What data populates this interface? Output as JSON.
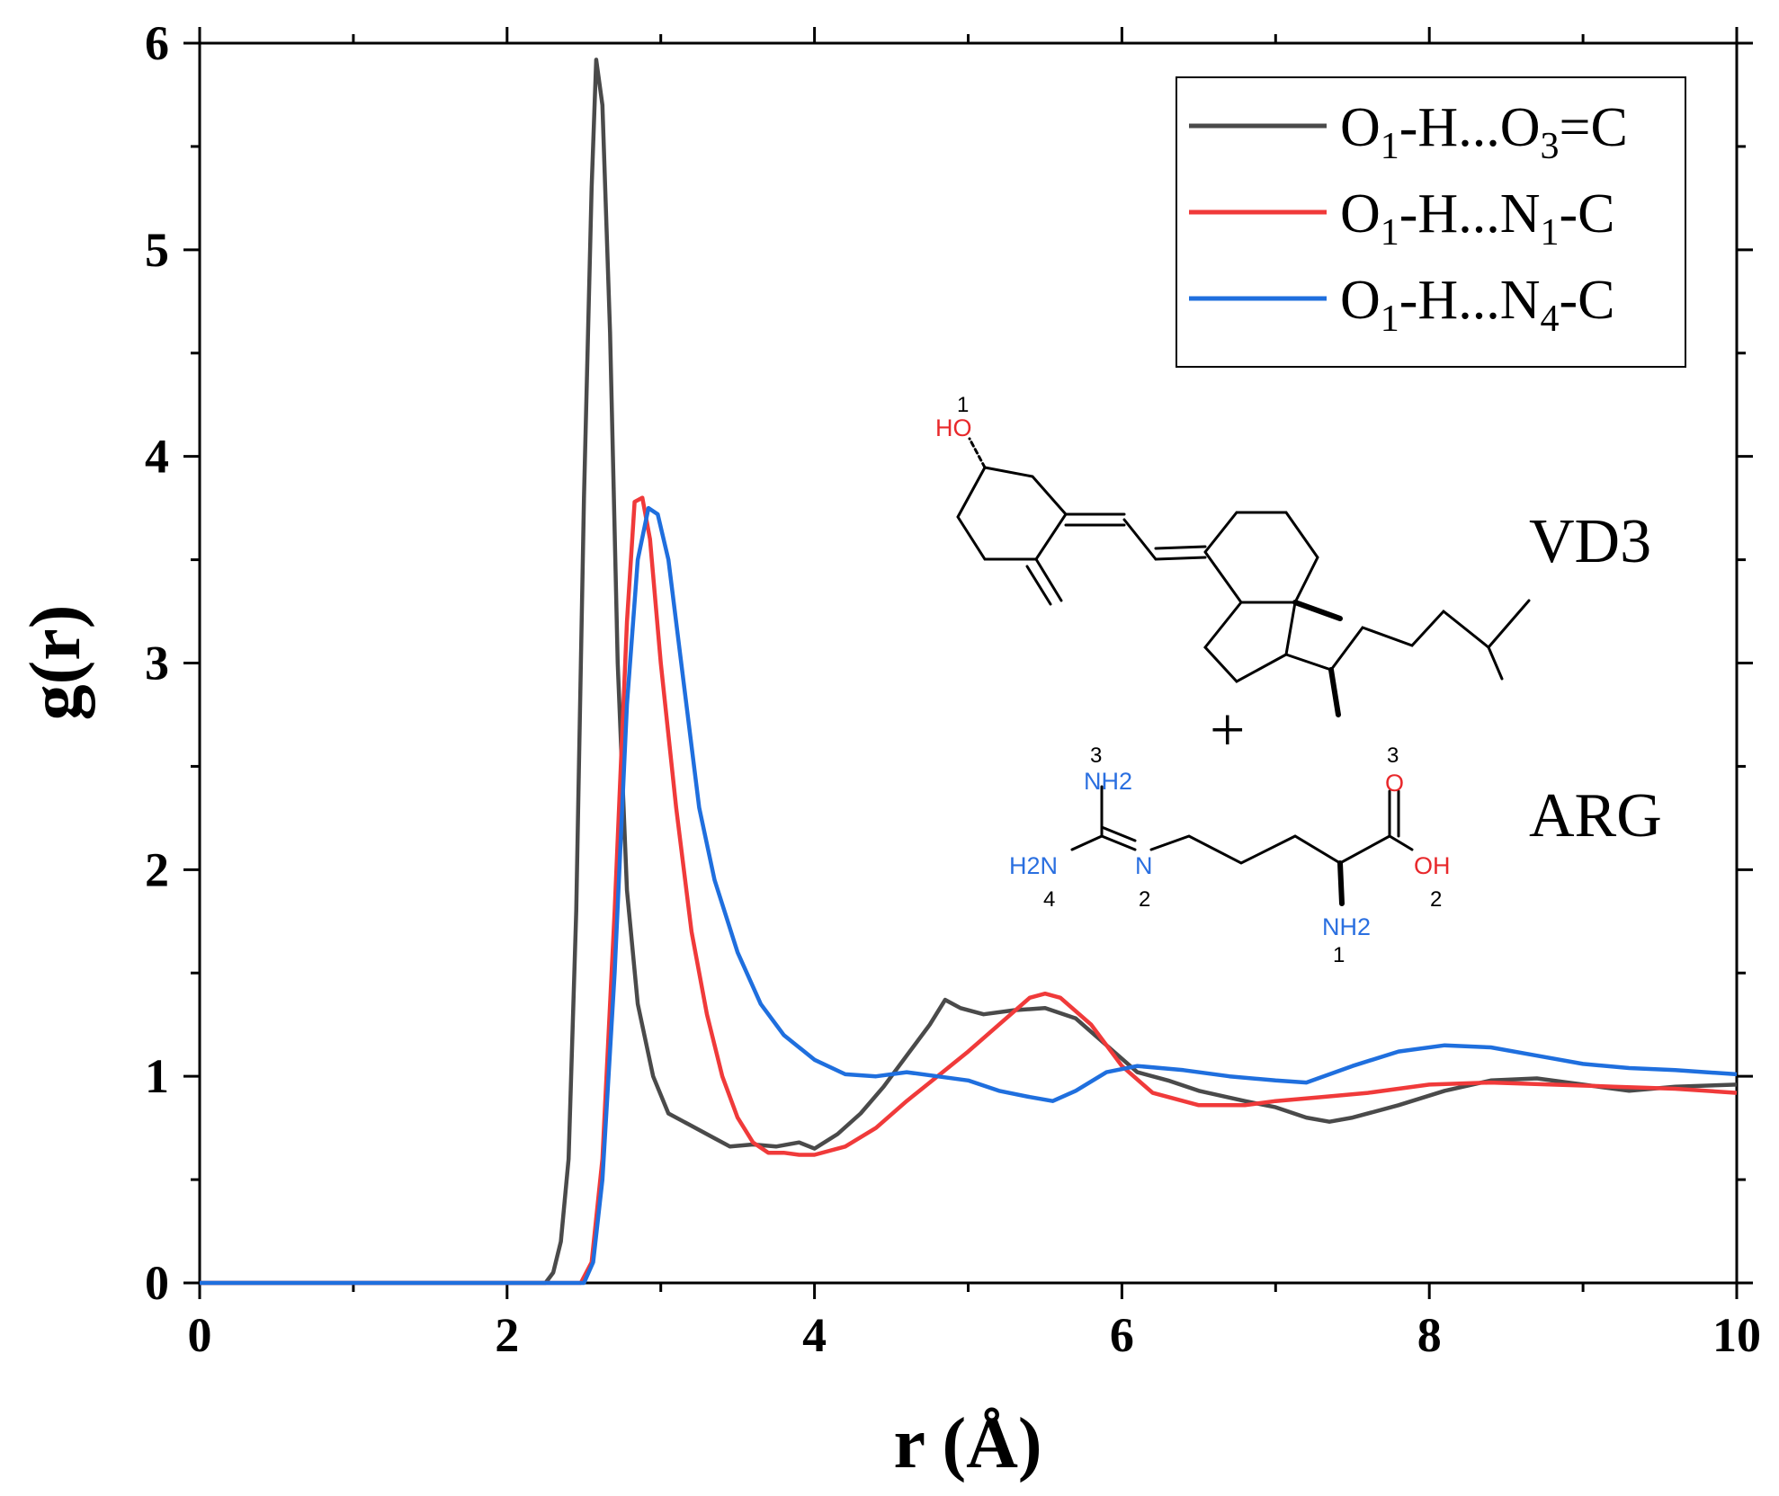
{
  "chart_data": {
    "type": "line",
    "xlabel": "r (Å)",
    "ylabel": "g(r)",
    "xlim": [
      0,
      10
    ],
    "ylim": [
      0,
      6
    ],
    "xticks": [
      "0",
      "2",
      "4",
      "6",
      "8",
      "10"
    ],
    "yticks": [
      "0",
      "1",
      "2",
      "3",
      "4",
      "5",
      "6"
    ],
    "legend_position": "top-right",
    "series": [
      {
        "name": "O1-H...O3=C",
        "label_parts": [
          "O",
          "1",
          "-H...O",
          "3",
          "=C"
        ],
        "color": "#4a4a4a",
        "x": [
          0,
          2.25,
          2.3,
          2.35,
          2.4,
          2.45,
          2.5,
          2.55,
          2.58,
          2.62,
          2.67,
          2.72,
          2.78,
          2.85,
          2.95,
          3.05,
          3.15,
          3.25,
          3.35,
          3.45,
          3.6,
          3.75,
          3.9,
          4.0,
          4.15,
          4.3,
          4.45,
          4.6,
          4.75,
          4.85,
          4.95,
          5.1,
          5.3,
          5.5,
          5.7,
          5.9,
          6.1,
          6.3,
          6.5,
          6.8,
          7.0,
          7.2,
          7.35,
          7.5,
          7.8,
          8.1,
          8.4,
          8.7,
          9.0,
          9.3,
          9.6,
          10.0
        ],
        "y": [
          0,
          0,
          0.05,
          0.2,
          0.6,
          1.8,
          3.8,
          5.3,
          5.92,
          5.7,
          4.6,
          3.0,
          1.9,
          1.35,
          1.0,
          0.82,
          0.78,
          0.74,
          0.7,
          0.66,
          0.67,
          0.66,
          0.68,
          0.65,
          0.72,
          0.82,
          0.95,
          1.1,
          1.25,
          1.37,
          1.33,
          1.3,
          1.32,
          1.33,
          1.28,
          1.15,
          1.02,
          0.98,
          0.93,
          0.88,
          0.85,
          0.8,
          0.78,
          0.8,
          0.86,
          0.93,
          0.98,
          0.99,
          0.96,
          0.93,
          0.95,
          0.96
        ]
      },
      {
        "name": "O1-H...N1-C",
        "label_parts": [
          "O",
          "1",
          "-H...N",
          "1",
          "-C"
        ],
        "color": "#f03a3a",
        "x": [
          0,
          2.48,
          2.55,
          2.62,
          2.7,
          2.78,
          2.83,
          2.88,
          2.93,
          3.0,
          3.1,
          3.2,
          3.3,
          3.4,
          3.5,
          3.6,
          3.7,
          3.8,
          3.9,
          4.0,
          4.2,
          4.4,
          4.6,
          4.8,
          5.0,
          5.2,
          5.4,
          5.5,
          5.6,
          5.8,
          6.0,
          6.2,
          6.5,
          6.8,
          7.0,
          7.3,
          7.6,
          8.0,
          8.4,
          8.8,
          9.2,
          9.6,
          10.0
        ],
        "y": [
          0,
          0,
          0.1,
          0.6,
          1.8,
          3.2,
          3.78,
          3.8,
          3.6,
          3.0,
          2.3,
          1.7,
          1.3,
          1.0,
          0.8,
          0.68,
          0.63,
          0.63,
          0.62,
          0.62,
          0.66,
          0.75,
          0.88,
          1.0,
          1.12,
          1.25,
          1.38,
          1.4,
          1.38,
          1.25,
          1.05,
          0.92,
          0.86,
          0.86,
          0.88,
          0.9,
          0.92,
          0.96,
          0.97,
          0.96,
          0.95,
          0.94,
          0.92
        ]
      },
      {
        "name": "O1-H...N4-C",
        "label_parts": [
          "O",
          "1",
          "-H...N",
          "4",
          "-C"
        ],
        "color": "#1f6fde",
        "x": [
          0,
          2.5,
          2.56,
          2.62,
          2.7,
          2.78,
          2.85,
          2.92,
          2.98,
          3.05,
          3.15,
          3.25,
          3.35,
          3.5,
          3.65,
          3.8,
          4.0,
          4.2,
          4.4,
          4.6,
          4.8,
          5.0,
          5.2,
          5.4,
          5.55,
          5.7,
          5.9,
          6.1,
          6.4,
          6.7,
          7.0,
          7.2,
          7.5,
          7.8,
          8.1,
          8.4,
          8.7,
          9.0,
          9.3,
          9.6,
          10.0
        ],
        "y": [
          0,
          0,
          0.1,
          0.5,
          1.5,
          2.8,
          3.5,
          3.75,
          3.72,
          3.5,
          2.9,
          2.3,
          1.95,
          1.6,
          1.35,
          1.2,
          1.08,
          1.01,
          1.0,
          1.02,
          1.0,
          0.98,
          0.93,
          0.9,
          0.88,
          0.93,
          1.02,
          1.05,
          1.03,
          1.0,
          0.98,
          0.97,
          1.05,
          1.12,
          1.15,
          1.14,
          1.1,
          1.06,
          1.04,
          1.03,
          1.01
        ]
      }
    ],
    "annotations": {
      "vd3": {
        "name": "VD3",
        "oh_label": "HO",
        "oh_number": "1"
      },
      "plus": "+",
      "arg": {
        "name": "ARG",
        "nh2_top": "NH2",
        "nh2_top_number": "3",
        "h2n_left": "H2N",
        "h2n_left_number": "4",
        "n_imine": "N",
        "n_imine_number": "2",
        "o_carbonyl": "O",
        "o_carbonyl_number": "3",
        "oh": "OH",
        "oh_number": "2",
        "nh2_alpha": "NH2",
        "nh2_alpha_number": "1"
      }
    }
  }
}
